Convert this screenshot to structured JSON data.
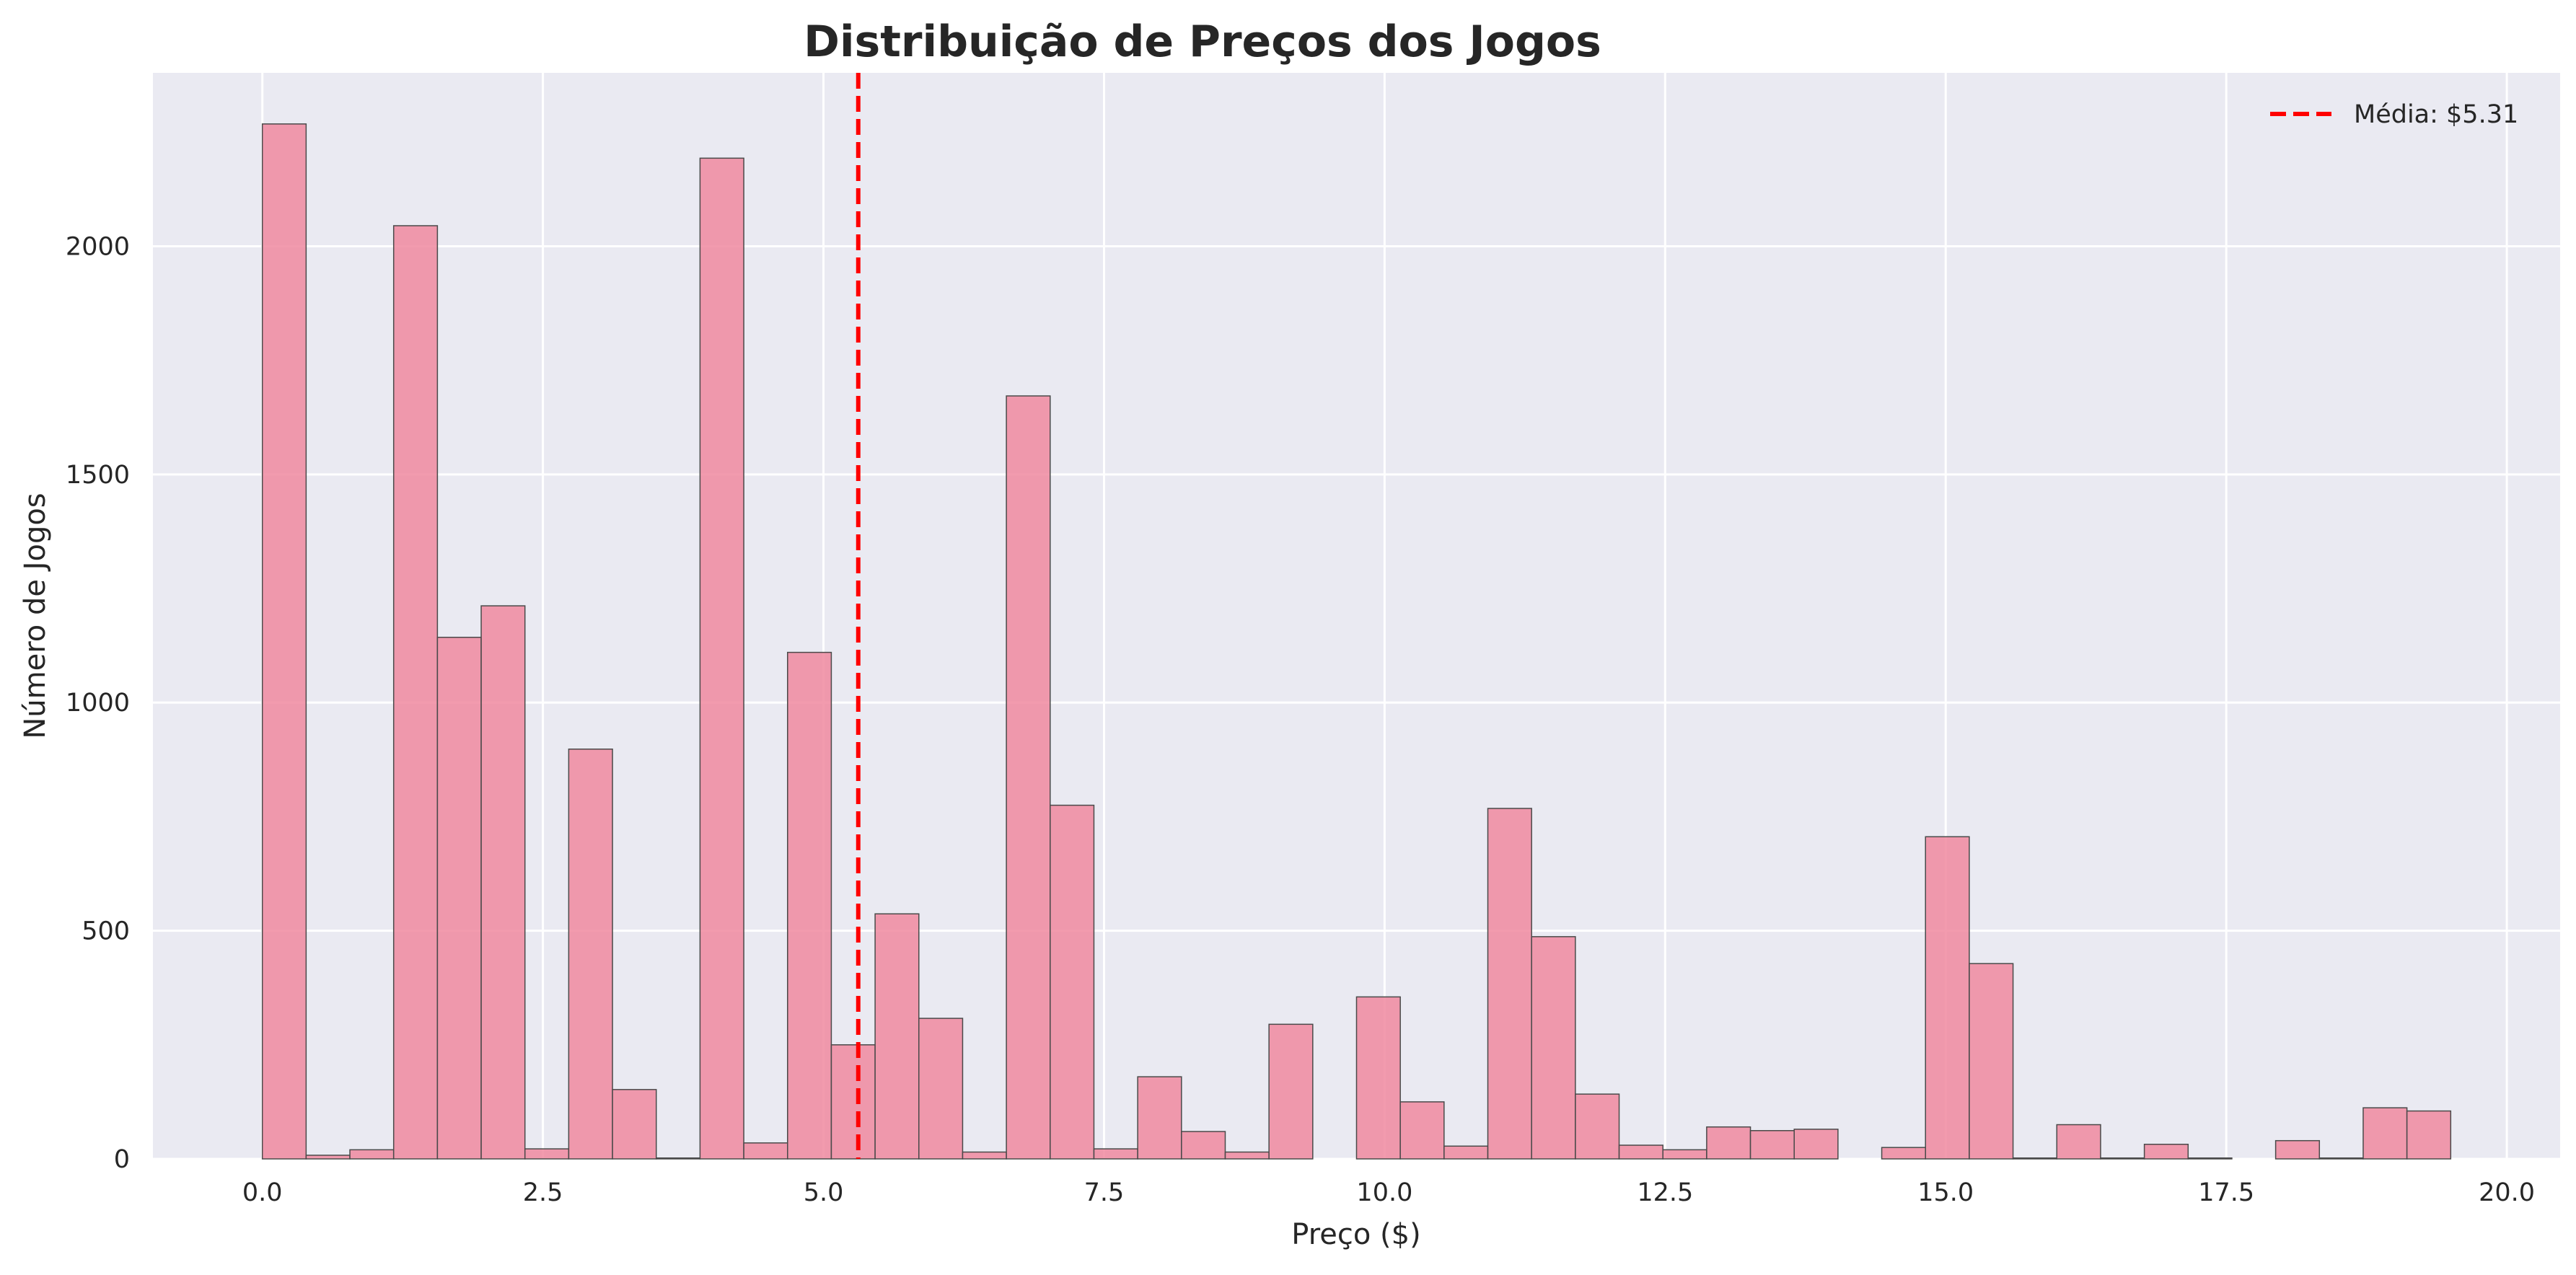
{
  "chart_data": {
    "type": "bar",
    "title": "Distribuição de Preços dos Jogos",
    "xlabel": "Preço ($)",
    "ylabel": "Número de Jogos",
    "xlim": [
      -0.975,
      20.475
    ],
    "ylim": [
      0,
      2380
    ],
    "x_ticks": [
      0.0,
      2.5,
      5.0,
      7.5,
      10.0,
      12.5,
      15.0,
      17.5,
      20.0
    ],
    "x_tick_labels": [
      "0.0",
      "2.5",
      "5.0",
      "7.5",
      "10.0",
      "12.5",
      "15.0",
      "17.5",
      "20.0"
    ],
    "y_ticks": [
      0,
      500,
      1000,
      1500,
      2000
    ],
    "y_tick_labels": [
      "0",
      "500",
      "1000",
      "1500",
      "2000"
    ],
    "grid": true,
    "bin_width": 0.39,
    "bins_start": 0,
    "values": [
      2268,
      8,
      20,
      2045,
      1143,
      1212,
      22,
      898,
      152,
      2,
      2193,
      35,
      1110,
      250,
      537,
      308,
      15,
      1672,
      775,
      22,
      180,
      60,
      15,
      295,
      0,
      355,
      125,
      28,
      768,
      487,
      142,
      30,
      20,
      70,
      62,
      65,
      0,
      25,
      706,
      428,
      2,
      75,
      2,
      32,
      2,
      0,
      40,
      2,
      112,
      105
    ],
    "bar_color": "#f08aa0",
    "mean_line": {
      "x": 5.31,
      "label": "Média: $5.31",
      "color": "#ff0000"
    },
    "legend_placement": "top-right"
  }
}
